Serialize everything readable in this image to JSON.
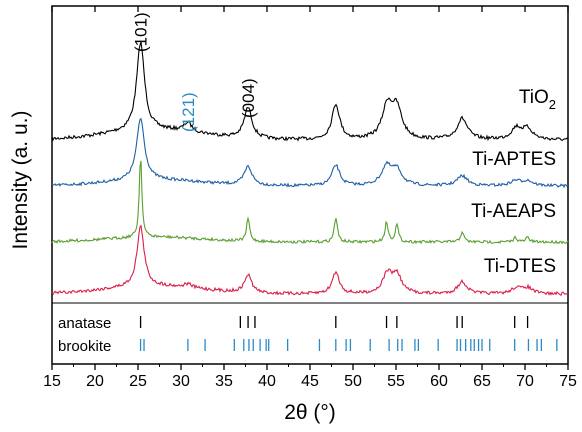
{
  "chart_data": {
    "type": "line",
    "title": "",
    "xlabel": "2θ (°)",
    "ylabel": "Intensity (a. u.)",
    "xlim": [
      15,
      75
    ],
    "x_ticks": [
      15,
      20,
      25,
      30,
      35,
      40,
      45,
      50,
      55,
      60,
      65,
      70,
      75
    ],
    "y_ticks": "none",
    "grid": false,
    "legend": "none (series labelled directly on the plot)",
    "series": [
      {
        "name": "TiO2",
        "name_display": {
          "base": "TiO",
          "sub": "2"
        },
        "color": "#000000",
        "peaks": [
          {
            "x": 25.3,
            "height": 1.0
          },
          {
            "x": 30.8,
            "height": 0.1
          },
          {
            "x": 37.8,
            "height": 0.35
          },
          {
            "x": 48.0,
            "height": 0.4
          },
          {
            "x": 54.0,
            "height": 0.37
          },
          {
            "x": 55.1,
            "height": 0.33
          },
          {
            "x": 62.7,
            "height": 0.24
          },
          {
            "x": 69.0,
            "height": 0.13
          },
          {
            "x": 70.3,
            "height": 0.12
          }
        ]
      },
      {
        "name": "Ti-APTES",
        "color": "#1f5fa6",
        "peaks": [
          {
            "x": 25.3,
            "height": 1.0
          },
          {
            "x": 37.8,
            "height": 0.3
          },
          {
            "x": 48.0,
            "height": 0.33
          },
          {
            "x": 53.9,
            "height": 0.3
          },
          {
            "x": 55.1,
            "height": 0.24
          },
          {
            "x": 62.7,
            "height": 0.16
          },
          {
            "x": 68.9,
            "height": 0.08
          },
          {
            "x": 70.3,
            "height": 0.08
          }
        ]
      },
      {
        "name": "Ti-AEAPS",
        "color": "#5a9e2f",
        "peaks": [
          {
            "x": 25.3,
            "height": 1.0
          },
          {
            "x": 37.8,
            "height": 0.28
          },
          {
            "x": 48.0,
            "height": 0.3
          },
          {
            "x": 53.9,
            "height": 0.24
          },
          {
            "x": 55.1,
            "height": 0.21
          },
          {
            "x": 62.7,
            "height": 0.13
          },
          {
            "x": 68.9,
            "height": 0.06
          },
          {
            "x": 70.3,
            "height": 0.06
          }
        ]
      },
      {
        "name": "Ti-DTES",
        "color": "#d91e4a",
        "peaks": [
          {
            "x": 25.3,
            "height": 1.0
          },
          {
            "x": 30.8,
            "height": 0.06
          },
          {
            "x": 37.8,
            "height": 0.3
          },
          {
            "x": 48.0,
            "height": 0.36
          },
          {
            "x": 54.0,
            "height": 0.32
          },
          {
            "x": 55.1,
            "height": 0.3
          },
          {
            "x": 62.7,
            "height": 0.2
          },
          {
            "x": 69.0,
            "height": 0.1
          },
          {
            "x": 70.3,
            "height": 0.1
          }
        ]
      }
    ],
    "annotations": [
      {
        "text": "(101)",
        "x": 25.3,
        "color": "#000000"
      },
      {
        "text": "(121)",
        "x": 30.8,
        "color": "#2a8bc4"
      },
      {
        "text": "(004)",
        "x": 37.8,
        "color": "#000000"
      }
    ],
    "reference_patterns": [
      {
        "name": "anatase",
        "color": "#000000",
        "positions": [
          25.3,
          36.9,
          37.8,
          38.6,
          48.0,
          53.9,
          55.1,
          62.1,
          62.7,
          68.8,
          70.3
        ]
      },
      {
        "name": "brookite",
        "color": "#2a8bc4",
        "positions": [
          25.3,
          25.7,
          30.8,
          32.8,
          36.2,
          37.3,
          37.9,
          38.4,
          39.2,
          39.9,
          40.2,
          42.4,
          46.1,
          48.0,
          49.2,
          49.7,
          52.0,
          54.2,
          55.2,
          55.7,
          57.2,
          57.6,
          59.9,
          62.1,
          62.5,
          63.1,
          63.7,
          64.1,
          64.6,
          65.0,
          65.9,
          68.8,
          70.4,
          71.4,
          71.9,
          73.7
        ]
      }
    ]
  }
}
